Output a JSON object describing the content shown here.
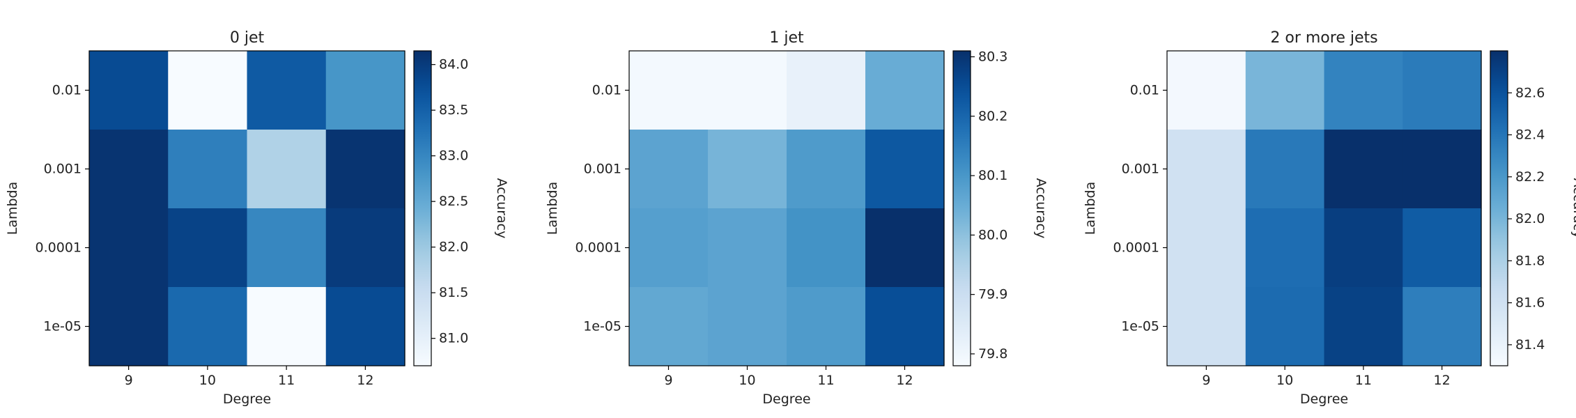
{
  "chart_data": [
    {
      "type": "heatmap",
      "title": "0 jet",
      "xlabel": "Degree",
      "ylabel": "Lambda",
      "x_categories": [
        "9",
        "10",
        "11",
        "12"
      ],
      "y_categories": [
        "0.01",
        "0.001",
        "0.0001",
        "1e-05"
      ],
      "values": [
        [
          83.8,
          80.7,
          83.6,
          82.8
        ],
        [
          84.1,
          83.1,
          81.8,
          84.1
        ],
        [
          84.1,
          83.9,
          83.0,
          84.0
        ],
        [
          84.1,
          83.4,
          80.7,
          83.8
        ]
      ],
      "colorbar": {
        "label": "Accuracy",
        "range": [
          80.7,
          84.15
        ],
        "ticks": [
          "81.0",
          "81.5",
          "82.0",
          "82.5",
          "83.0",
          "83.5",
          "84.0"
        ]
      },
      "colormap": "Blues"
    },
    {
      "type": "heatmap",
      "title": "1 jet",
      "xlabel": "Degree",
      "ylabel": "Lambda",
      "x_categories": [
        "9",
        "10",
        "11",
        "12"
      ],
      "y_categories": [
        "0.01",
        "0.001",
        "0.0001",
        "1e-05"
      ],
      "values": [
        [
          79.79,
          79.79,
          79.82,
          80.05
        ],
        [
          80.07,
          80.03,
          80.09,
          80.23
        ],
        [
          80.08,
          80.07,
          80.11,
          80.31
        ],
        [
          80.06,
          80.07,
          80.09,
          80.25
        ]
      ],
      "colorbar": {
        "label": "Accuracy",
        "range": [
          79.78,
          80.31
        ],
        "ticks": [
          "79.8",
          "79.9",
          "80.0",
          "80.1",
          "80.2",
          "80.3"
        ]
      },
      "colormap": "Blues"
    },
    {
      "type": "heatmap",
      "title": "2 or more jets",
      "xlabel": "Degree",
      "ylabel": "Lambda",
      "x_categories": [
        "9",
        "10",
        "11",
        "12"
      ],
      "y_categories": [
        "0.01",
        "0.001",
        "0.0001",
        "1e-05"
      ],
      "values": [
        [
          81.33,
          82.0,
          82.32,
          82.37
        ],
        [
          81.6,
          82.38,
          82.8,
          82.8
        ],
        [
          81.6,
          82.45,
          82.72,
          82.55
        ],
        [
          81.6,
          82.46,
          82.7,
          82.35
        ]
      ],
      "colorbar": {
        "label": "Accuracy",
        "range": [
          81.3,
          82.8
        ],
        "ticks": [
          "81.4",
          "81.6",
          "81.8",
          "82.0",
          "82.2",
          "82.4",
          "82.6"
        ]
      },
      "colormap": "Blues"
    }
  ]
}
